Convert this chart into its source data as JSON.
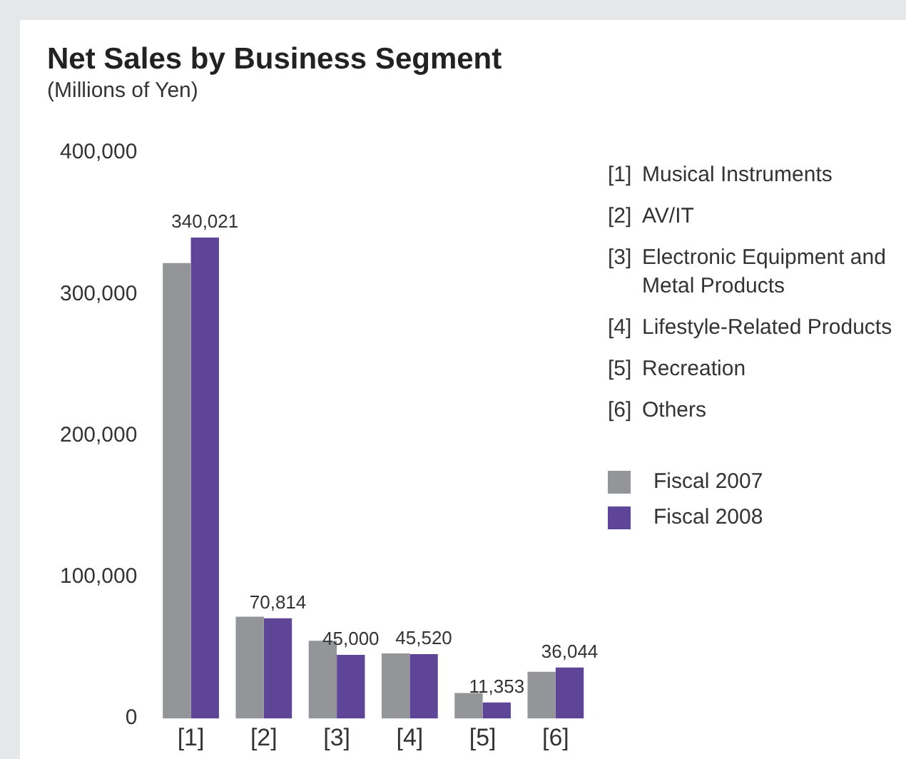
{
  "chart_data": {
    "type": "bar",
    "title": "Net Sales by Business Segment",
    "subtitle": "(Millions of Yen)",
    "categories": [
      "[1]",
      "[2]",
      "[3]",
      "[4]",
      "[5]",
      "[6]"
    ],
    "series": [
      {
        "name": "Fiscal 2007",
        "color": "#939598",
        "values": [
          322000,
          72000,
          55000,
          46000,
          18000,
          33000
        ]
      },
      {
        "name": "Fiscal 2008",
        "color": "#5f4598",
        "values": [
          340021,
          70814,
          45000,
          45520,
          11353,
          36044
        ],
        "value_labels": [
          "340,021",
          "70,814",
          "45,000",
          "45,520",
          "11,353",
          "36,044"
        ]
      }
    ],
    "ylim": [
      0,
      400000
    ],
    "yticks": [
      0,
      {
        "value": 100000,
        "label": "100,000"
      },
      {
        "value": 200000,
        "label": "200,000"
      },
      {
        "value": 300000,
        "label": "300,000"
      },
      {
        "value": 400000,
        "label": "400,000"
      }
    ],
    "grid": false,
    "legend": "right",
    "annotations": [
      "[1] Musical Instruments",
      "[2] AV/IT",
      "[3] Electronic Equipment and Metal Products",
      "[4] Lifestyle-Related Products",
      "[5] Recreation",
      "[6] Others"
    ]
  }
}
